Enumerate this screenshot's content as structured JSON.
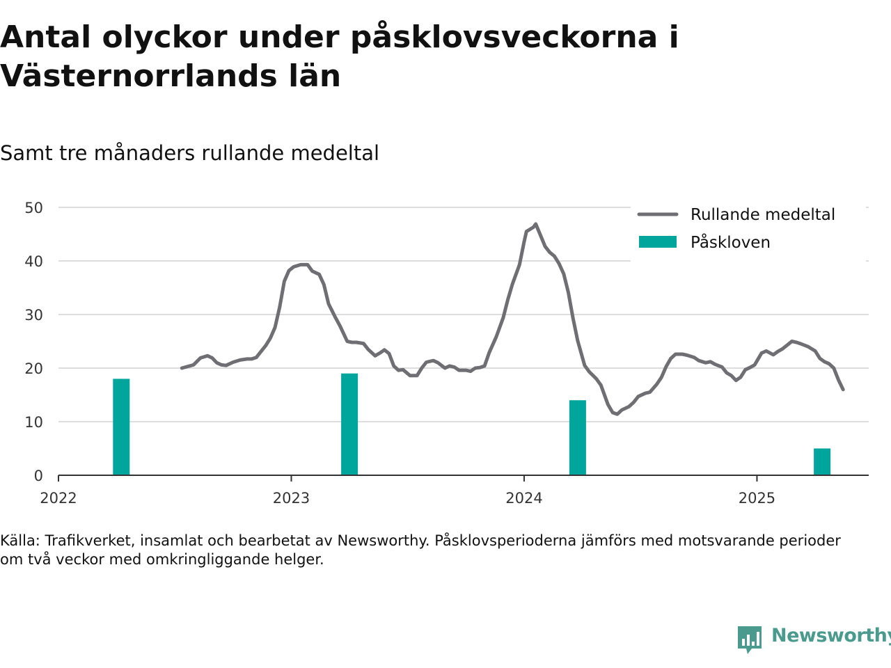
{
  "title": "Antal olyckor under påsklovsveckorna i Västernorrlands län",
  "subtitle": "Samt tre månaders rullande medeltal",
  "source_line1": "Källa: Trafikverket, insamlat och bearbetat av Newsworthy. Påsklovsperioderna jämförs med motsvarande perioder",
  "source_line2": "om två veckor med omkringliggande helger.",
  "brand": "Newsworthy",
  "colors": {
    "line": "#6e6e73",
    "bar": "#00a69c",
    "grid": "#dddddd",
    "brand": "#4a9b8e"
  },
  "chart_data": {
    "type": "bar+line",
    "ylim": [
      0,
      50
    ],
    "yticks": [
      0,
      10,
      20,
      30,
      40,
      50
    ],
    "xlim": [
      2022.0,
      2025.48
    ],
    "xticks": [
      {
        "value": 2022,
        "label": "2022"
      },
      {
        "value": 2023,
        "label": "2023"
      },
      {
        "value": 2024,
        "label": "2024"
      },
      {
        "value": 2025,
        "label": "2025"
      }
    ],
    "grid": true,
    "legend_position": "top-right",
    "series": [
      {
        "name": "Rullande medeltal",
        "type": "line",
        "points": [
          [
            2022.53,
            20.0
          ],
          [
            2022.58,
            20.6
          ],
          [
            2022.61,
            21.9
          ],
          [
            2022.64,
            22.3
          ],
          [
            2022.66,
            21.9
          ],
          [
            2022.68,
            21.0
          ],
          [
            2022.7,
            20.6
          ],
          [
            2022.72,
            20.5
          ],
          [
            2022.75,
            21.1
          ],
          [
            2022.78,
            21.5
          ],
          [
            2022.81,
            21.7
          ],
          [
            2022.83,
            21.7
          ],
          [
            2022.85,
            22.0
          ],
          [
            2022.87,
            23.1
          ],
          [
            2022.89,
            24.2
          ],
          [
            2022.91,
            25.6
          ],
          [
            2022.93,
            27.6
          ],
          [
            2022.95,
            31.4
          ],
          [
            2022.97,
            36.2
          ],
          [
            2022.99,
            38.2
          ],
          [
            2023.01,
            38.9
          ],
          [
            2023.04,
            39.3
          ],
          [
            2023.07,
            39.3
          ],
          [
            2023.09,
            38.1
          ],
          [
            2023.12,
            37.5
          ],
          [
            2023.14,
            35.6
          ],
          [
            2023.16,
            32.0
          ],
          [
            2023.19,
            29.4
          ],
          [
            2023.21,
            27.8
          ],
          [
            2023.24,
            25.0
          ],
          [
            2023.26,
            24.8
          ],
          [
            2023.28,
            24.8
          ],
          [
            2023.31,
            24.6
          ],
          [
            2023.33,
            23.5
          ],
          [
            2023.36,
            22.3
          ],
          [
            2023.38,
            22.8
          ],
          [
            2023.4,
            23.4
          ],
          [
            2023.42,
            22.7
          ],
          [
            2023.44,
            20.4
          ],
          [
            2023.46,
            19.6
          ],
          [
            2023.48,
            19.7
          ],
          [
            2023.51,
            18.6
          ],
          [
            2023.54,
            18.6
          ],
          [
            2023.56,
            20.0
          ],
          [
            2023.58,
            21.1
          ],
          [
            2023.61,
            21.4
          ],
          [
            2023.63,
            21.0
          ],
          [
            2023.66,
            20.0
          ],
          [
            2023.68,
            20.4
          ],
          [
            2023.7,
            20.2
          ],
          [
            2023.72,
            19.6
          ],
          [
            2023.75,
            19.6
          ],
          [
            2023.77,
            19.4
          ],
          [
            2023.79,
            20.0
          ],
          [
            2023.81,
            20.1
          ],
          [
            2023.83,
            20.4
          ],
          [
            2023.85,
            22.9
          ],
          [
            2023.88,
            25.8
          ],
          [
            2023.91,
            29.4
          ],
          [
            2023.93,
            32.8
          ],
          [
            2023.95,
            35.7
          ],
          [
            2023.98,
            39.3
          ],
          [
            2024.0,
            43.6
          ],
          [
            2024.01,
            45.5
          ],
          [
            2024.04,
            46.3
          ],
          [
            2024.05,
            46.9
          ],
          [
            2024.07,
            44.8
          ],
          [
            2024.09,
            42.7
          ],
          [
            2024.11,
            41.6
          ],
          [
            2024.13,
            40.9
          ],
          [
            2024.15,
            39.5
          ],
          [
            2024.17,
            37.6
          ],
          [
            2024.19,
            34.1
          ],
          [
            2024.21,
            29.3
          ],
          [
            2024.23,
            25.1
          ],
          [
            2024.26,
            20.5
          ],
          [
            2024.28,
            19.3
          ],
          [
            2024.31,
            18.0
          ],
          [
            2024.33,
            16.8
          ],
          [
            2024.36,
            13.2
          ],
          [
            2024.38,
            11.7
          ],
          [
            2024.4,
            11.4
          ],
          [
            2024.42,
            12.2
          ],
          [
            2024.45,
            12.8
          ],
          [
            2024.47,
            13.6
          ],
          [
            2024.49,
            14.7
          ],
          [
            2024.52,
            15.3
          ],
          [
            2024.54,
            15.5
          ],
          [
            2024.57,
            17.0
          ],
          [
            2024.59,
            18.3
          ],
          [
            2024.61,
            20.3
          ],
          [
            2024.63,
            21.8
          ],
          [
            2024.65,
            22.6
          ],
          [
            2024.68,
            22.6
          ],
          [
            2024.7,
            22.4
          ],
          [
            2024.73,
            22.0
          ],
          [
            2024.75,
            21.4
          ],
          [
            2024.78,
            21.0
          ],
          [
            2024.8,
            21.2
          ],
          [
            2024.82,
            20.7
          ],
          [
            2024.85,
            20.2
          ],
          [
            2024.87,
            19.1
          ],
          [
            2024.89,
            18.6
          ],
          [
            2024.91,
            17.7
          ],
          [
            2024.93,
            18.3
          ],
          [
            2024.95,
            19.7
          ],
          [
            2024.97,
            20.1
          ],
          [
            2024.99,
            20.6
          ],
          [
            2025.02,
            22.8
          ],
          [
            2025.04,
            23.2
          ],
          [
            2025.07,
            22.5
          ],
          [
            2025.09,
            23.1
          ],
          [
            2025.11,
            23.6
          ],
          [
            2025.13,
            24.3
          ],
          [
            2025.15,
            25.0
          ],
          [
            2025.17,
            24.8
          ],
          [
            2025.19,
            24.5
          ],
          [
            2025.22,
            24.0
          ],
          [
            2025.25,
            23.2
          ],
          [
            2025.27,
            21.8
          ],
          [
            2025.29,
            21.2
          ],
          [
            2025.31,
            20.8
          ],
          [
            2025.33,
            20.0
          ],
          [
            2025.35,
            17.8
          ],
          [
            2025.37,
            16.0
          ]
        ]
      },
      {
        "name": "Påskloven",
        "type": "bar",
        "bars": [
          {
            "x": 2022.27,
            "value": 18
          },
          {
            "x": 2023.25,
            "value": 19
          },
          {
            "x": 2024.23,
            "value": 14
          },
          {
            "x": 2025.28,
            "value": 5
          }
        ]
      }
    ]
  }
}
